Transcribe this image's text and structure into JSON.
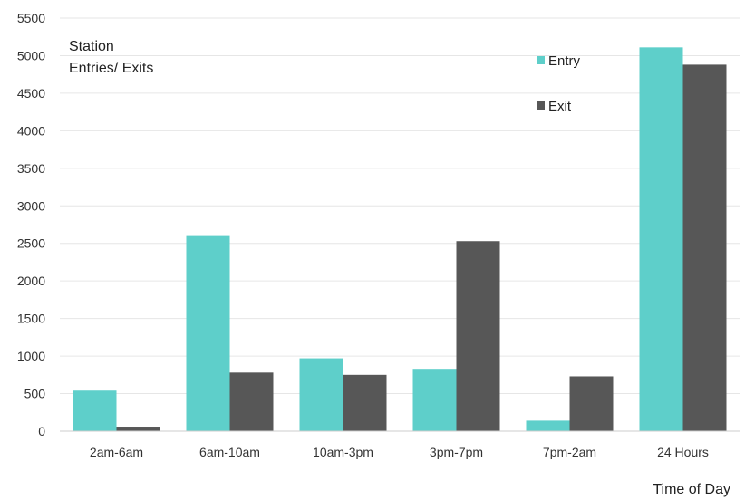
{
  "chart_data": {
    "type": "bar",
    "title": "",
    "ylabel_lines": [
      "Station",
      "Entries/ Exits"
    ],
    "xlabel": "Time of Day",
    "categories": [
      "2am-6am",
      "6am-10am",
      "10am-3pm",
      "3pm-7pm",
      "7pm-2am",
      "24 Hours"
    ],
    "series": [
      {
        "name": "Entry",
        "color": "#5ecfca",
        "values": [
          540,
          2610,
          970,
          830,
          140,
          5110
        ]
      },
      {
        "name": "Exit",
        "color": "#575757",
        "values": [
          60,
          780,
          750,
          2530,
          730,
          4880
        ]
      }
    ],
    "ylim": [
      0,
      5500
    ],
    "yticks": [
      "0",
      "500",
      "1000",
      "1500",
      "2000",
      "2500",
      "3000",
      "3500",
      "4000",
      "4500",
      "5000",
      "5500"
    ],
    "grid": true,
    "legend_position": "top-right"
  }
}
